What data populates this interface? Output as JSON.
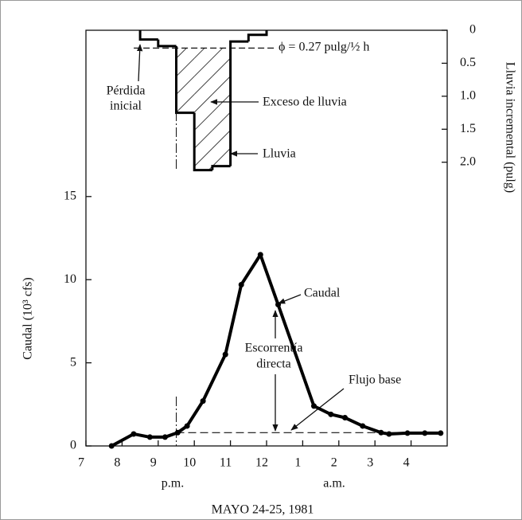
{
  "chart_data": {
    "type": "hydrograph",
    "xlabel": "MAYO 24-25, 1981",
    "ylabel": "Caudal (10³ cfs)",
    "y2label": "Lluvia incremental (pulg)",
    "xlim": [
      7,
      17
    ],
    "xticks": [
      7,
      8,
      9,
      10,
      11,
      12,
      {
        "value": 13,
        "label": "1"
      },
      {
        "value": 14,
        "label": "2"
      },
      {
        "value": 15,
        "label": "3"
      },
      {
        "value": 16,
        "label": "4"
      }
    ],
    "ylim": [
      0,
      25
    ],
    "yticks": [
      0,
      5,
      10,
      15
    ],
    "y2lim": [
      0,
      6.3
    ],
    "y2ticks": [
      0,
      0.5,
      {
        "value": 1,
        "label": "1.0"
      },
      1.5,
      {
        "value": 2,
        "label": "2.0"
      }
    ],
    "y2_inverted": true,
    "series": [
      {
        "name": "Caudal",
        "color": "#000000",
        "x": [
          7.71,
          8.32,
          8.77,
          9.19,
          9.54,
          9.8,
          10.24,
          10.86,
          11.3,
          11.83,
          12.32,
          13.31,
          13.78,
          14.17,
          14.66,
          15.17,
          15.39,
          15.9,
          16.38,
          16.82
        ],
        "values": [
          0,
          0.72,
          0.53,
          0.53,
          0.8,
          1.2,
          2.7,
          5.5,
          9.7,
          11.5,
          8.5,
          2.4,
          1.9,
          1.7,
          1.2,
          0.8,
          0.72,
          0.77,
          0.77,
          0.77
        ]
      },
      {
        "name": "Lluvia",
        "axis": "y2",
        "color": "#000000",
        "bins": [
          8.5,
          9,
          9.5,
          10,
          10.5,
          11,
          11.5,
          12
        ],
        "values": [
          0.14,
          0.24,
          1.25,
          2.12,
          2.06,
          0.17,
          0.07
        ]
      }
    ],
    "baseflow": 0.8,
    "phi": 0.27,
    "phi_label": "ϕ = 0.27 pulg/½ h",
    "annotations": {
      "perdida": [
        "Pérdida",
        "inicial"
      ],
      "exceso": "Exceso de lluvia",
      "lluvia": "Lluvia",
      "caudal": "Caudal",
      "escorrentia": [
        "Escorrentía",
        "directa"
      ],
      "flujo": "Flujo base",
      "pm": "p.m.",
      "am": "a.m."
    }
  }
}
